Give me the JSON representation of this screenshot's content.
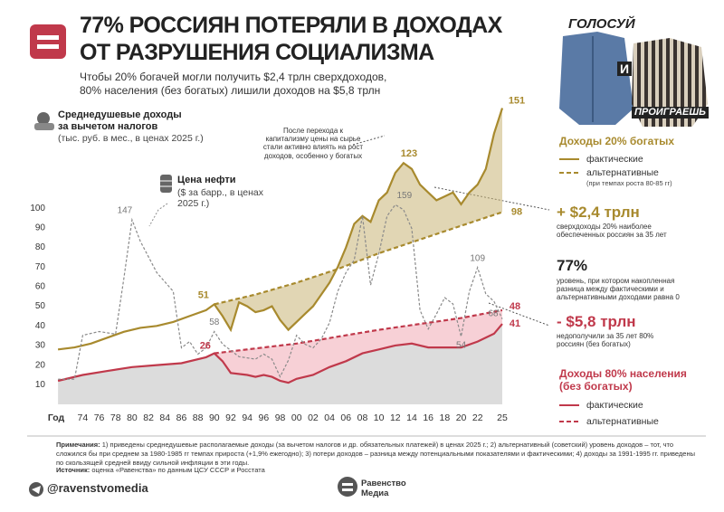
{
  "header": {
    "title": [
      "77% РОССИЯН ПОТЕРЯЛИ В ДОХОДАХ",
      "ОТ РАЗРУШЕНИЯ СОЦИАЛИЗМА"
    ],
    "subtitle": [
      "Чтобы 20% богачей могли получить $2,4 трлн сверхдоходов,",
      "80% населения (без богатых) лишили доходов на $5,8 трлн"
    ]
  },
  "poster": {
    "top": "ГОЛОСУЙ",
    "middle": "И",
    "bottom": "ПРОИГРАЕШЬ"
  },
  "chart_data": {
    "type": "line",
    "ylabel": "Среднедушевые доходы за вычетом налогов",
    "ylabel_note": "(тыс. руб. в мес., в ценах 2025 г.)",
    "xlabel": "Год",
    "y2label": "($ за барр., в ценах 2025 г.)",
    "annotation": "После перехода к капитализму цены на сырье стали активно влиять на рост доходов, особенно у богатых",
    "xlim": [
      1970,
      2025
    ],
    "xticks": [
      {
        "value": 1974,
        "label": "74"
      },
      {
        "value": 1976,
        "label": "76"
      },
      {
        "value": 1978,
        "label": "78"
      },
      {
        "value": 1980,
        "label": "80"
      },
      {
        "value": 1982,
        "label": "82"
      },
      {
        "value": 1984,
        "label": "84"
      },
      {
        "value": 1986,
        "label": "86"
      },
      {
        "value": 1988,
        "label": "88"
      },
      {
        "value": 1990,
        "label": "90"
      },
      {
        "value": 1992,
        "label": "92"
      },
      {
        "value": 1994,
        "label": "94"
      },
      {
        "value": 1996,
        "label": "96"
      },
      {
        "value": 1998,
        "label": "98"
      },
      {
        "value": 2000,
        "label": "00"
      },
      {
        "value": 2002,
        "label": "02"
      },
      {
        "value": 2004,
        "label": "04"
      },
      {
        "value": 2006,
        "label": "06"
      },
      {
        "value": 2008,
        "label": "08"
      },
      {
        "value": 2010,
        "label": "10"
      },
      {
        "value": 2012,
        "label": "12"
      },
      {
        "value": 2014,
        "label": "14"
      },
      {
        "value": 2016,
        "label": "16"
      },
      {
        "value": 2018,
        "label": "18"
      },
      {
        "value": 2020,
        "label": "20"
      },
      {
        "value": 2022,
        "label": "22"
      },
      {
        "value": 2025,
        "label": "25"
      }
    ],
    "ylim": [
      0,
      160
    ],
    "yticks": [
      10,
      20,
      30,
      40,
      50,
      60,
      70,
      80,
      90,
      100
    ],
    "y2lim": [
      0,
      250
    ],
    "grid": false,
    "legend_groups": [
      {
        "title": "Доходы 20% богатых",
        "note": "(при темпах роста 80-85 гг)"
      },
      {
        "title": "Доходы 80% населения (без богатых)"
      }
    ],
    "series": [
      {
        "name": "фактические",
        "color": "#a88a2e",
        "dashed": false,
        "x": [
          1971,
          1973,
          1975,
          1977,
          1979,
          1981,
          1983,
          1985,
          1987,
          1989,
          1990,
          1991,
          1992,
          1993,
          1994,
          1995,
          1996,
          1997,
          1998,
          1999,
          2000,
          2001,
          2002,
          2003,
          2004,
          2005,
          2006,
          2007,
          2008,
          2009,
          2010,
          2011,
          2012,
          2013,
          2014,
          2015,
          2016,
          2017,
          2018,
          2019,
          2020,
          2021,
          2022,
          2023,
          2024,
          2025
        ],
        "values": [
          28,
          29,
          31,
          34,
          37,
          39,
          40,
          42,
          45,
          48,
          51,
          45,
          38,
          52,
          50,
          47,
          48,
          50,
          43,
          38,
          42,
          46,
          50,
          56,
          62,
          70,
          80,
          92,
          96,
          93,
          104,
          108,
          118,
          123,
          120,
          112,
          108,
          104,
          106,
          108,
          102,
          108,
          112,
          120,
          138,
          151
        ]
      },
      {
        "name": "альтернативные",
        "color": "#a88a2e",
        "dashed": true,
        "x": [
          1990,
          1995,
          2000,
          2005,
          2010,
          2015,
          2020,
          2025
        ],
        "values": [
          51,
          56,
          62,
          69,
          77,
          84,
          91,
          98
        ]
      },
      {
        "name": "фактические",
        "color": "#c0394b",
        "dashed": false,
        "x": [
          1971,
          1974,
          1977,
          1980,
          1983,
          1986,
          1989,
          1990,
          1991,
          1992,
          1994,
          1995,
          1996,
          1997,
          1998,
          1999,
          2000,
          2002,
          2004,
          2006,
          2008,
          2010,
          2012,
          2014,
          2016,
          2018,
          2020,
          2022,
          2024,
          2025
        ],
        "values": [
          12,
          15,
          17,
          19,
          20,
          21,
          24,
          26,
          22,
          16,
          15,
          14,
          15,
          14,
          12,
          11,
          13,
          15,
          19,
          22,
          26,
          28,
          30,
          31,
          29,
          29,
          29,
          32,
          36,
          41
        ]
      },
      {
        "name": "альтернативные",
        "color": "#c0394b",
        "dashed": true,
        "x": [
          1990,
          2000,
          2010,
          2020,
          2025
        ],
        "values": [
          26,
          31,
          38,
          44,
          48
        ]
      },
      {
        "name": "Цена нефти",
        "color": "#8a8a8a",
        "dashed": true,
        "axis": "y2",
        "x": [
          1971,
          1973,
          1974,
          1976,
          1978,
          1979,
          1980,
          1981,
          1983,
          1985,
          1986,
          1987,
          1988,
          1989,
          1990,
          1991,
          1993,
          1995,
          1996,
          1997,
          1998,
          1999,
          2000,
          2001,
          2002,
          2003,
          2004,
          2005,
          2006,
          2007,
          2008,
          2009,
          2010,
          2011,
          2012,
          2013,
          2014,
          2015,
          2016,
          2017,
          2018,
          2019,
          2020,
          2021,
          2022,
          2023,
          2024,
          2025
        ],
        "values": [
          20,
          20,
          55,
          58,
          56,
          100,
          147,
          130,
          105,
          90,
          45,
          50,
          40,
          45,
          58,
          48,
          38,
          36,
          40,
          36,
          22,
          35,
          55,
          48,
          45,
          52,
          65,
          90,
          105,
          115,
          150,
          95,
          120,
          150,
          159,
          155,
          140,
          75,
          60,
          72,
          85,
          80,
          54,
          90,
          109,
          88,
          82,
          68
        ]
      }
    ]
  },
  "stats": [
    {
      "value": "+ $2,4 трлн",
      "text": "сверхдоходы 20% наиболее обеспеченных россиян за 35 лет"
    },
    {
      "value": "77%",
      "text": "уровень, при котором накопленная разница между фактическими и альтернативными доходами равна 0"
    },
    {
      "value": "- $5,8 трлн",
      "text": "недополучили за 35 лет 80% россиян (без богатых)"
    }
  ],
  "footer": {
    "notes_label": "Примечания:",
    "notes": "1) приведены среднедушевые располагаемые доходы (за вычетом налогов и др. обязательных платежей) в ценах 2025 г.; 2) альтернативный (советский) уровень доходов – тот, что сложился бы при среднем за 1980-1985 гг темпах прироста (+1,9% ежегодно); 3) потери доходов – разница между потенциальными показателями и фактическими; 4) доходы за 1991-1995 гг. приведены по скользящей средней ввиду сильной инфляции в эти годы.",
    "source_label": "Источник:",
    "source": "оценка «Равенства» по данным ЦСУ СССР и Росстата",
    "handle": "@ravenstvomedia",
    "brand": "Равенство Медиа"
  }
}
